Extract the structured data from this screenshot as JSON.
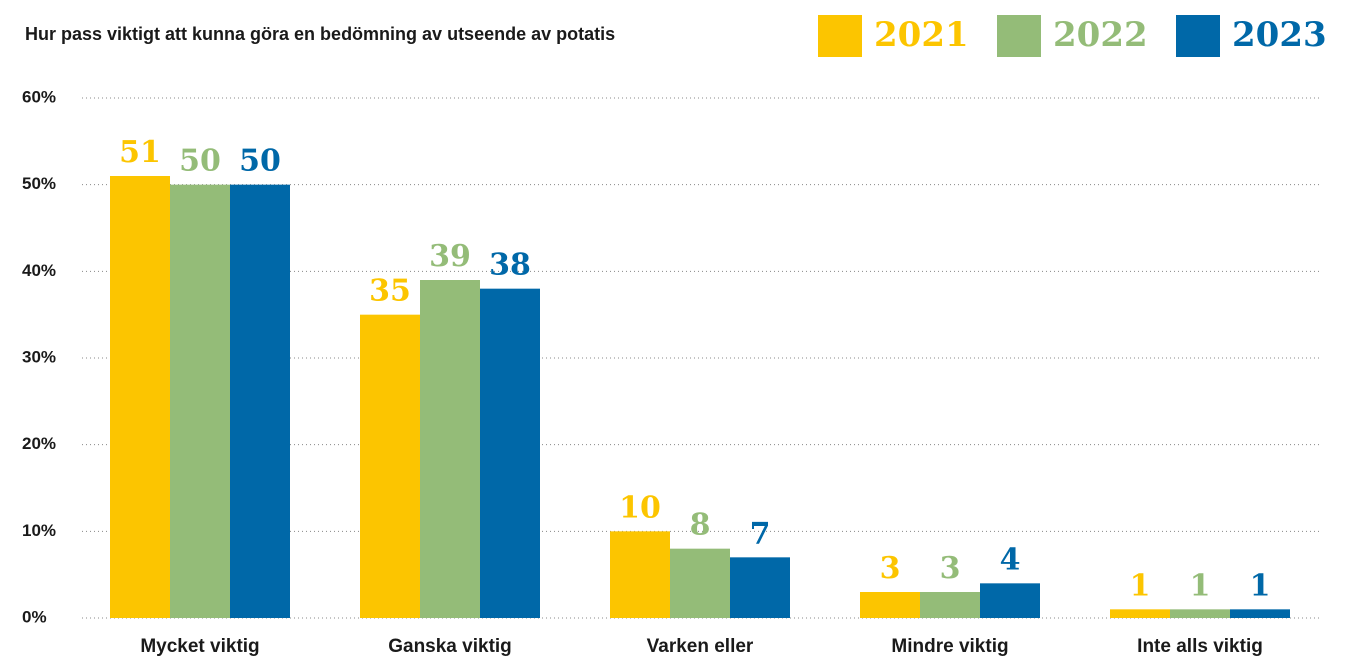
{
  "chart_data": {
    "type": "bar",
    "title": "Hur pass viktigt att kunna göra en bedömning av utseende av potatis",
    "categories": [
      "Mycket viktig",
      "Ganska viktig",
      "Varken eller",
      "Mindre viktig",
      "Inte alls viktig"
    ],
    "series": [
      {
        "name": "2021",
        "color": "#fcc500",
        "values": [
          51,
          35,
          10,
          3,
          1
        ]
      },
      {
        "name": "2022",
        "color": "#94bc78",
        "values": [
          50,
          39,
          8,
          3,
          1
        ]
      },
      {
        "name": "2023",
        "color": "#0068a8",
        "values": [
          50,
          38,
          7,
          4,
          1
        ]
      }
    ],
    "ylim": [
      0,
      60
    ],
    "yticks": [
      {
        "value": 0,
        "label": "0%"
      },
      {
        "value": 10,
        "label": "10%"
      },
      {
        "value": 20,
        "label": "20%"
      },
      {
        "value": 30,
        "label": "30%"
      },
      {
        "value": 40,
        "label": "40%"
      },
      {
        "value": 50,
        "label": "50%"
      },
      {
        "value": 60,
        "label": "60%"
      }
    ],
    "grid": true
  }
}
